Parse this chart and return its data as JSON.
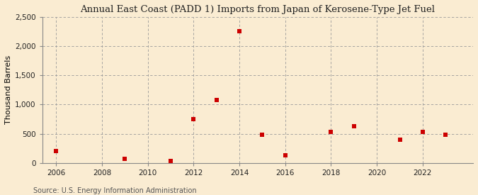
{
  "title": "Annual East Coast (PADD 1) Imports from Japan of Kerosene-Type Jet Fuel",
  "ylabel": "Thousand Barrels",
  "source": "Source: U.S. Energy Information Administration",
  "background_color": "#faecd2",
  "plot_background_color": "#faecd2",
  "marker_color": "#cc0000",
  "marker_size": 5,
  "xlim": [
    2005.4,
    2024.2
  ],
  "ylim": [
    0,
    2500
  ],
  "yticks": [
    0,
    500,
    1000,
    1500,
    2000,
    2500
  ],
  "ytick_labels": [
    "0",
    "500",
    "1,000",
    "1,500",
    "2,000",
    "2,500"
  ],
  "xticks": [
    2006,
    2008,
    2010,
    2012,
    2014,
    2016,
    2018,
    2020,
    2022
  ],
  "data": {
    "years": [
      2006,
      2009,
      2011,
      2012,
      2013,
      2014,
      2015,
      2016,
      2018,
      2019,
      2021,
      2022,
      2023
    ],
    "values": [
      200,
      75,
      30,
      750,
      1075,
      2250,
      480,
      130,
      535,
      625,
      400,
      530,
      480
    ]
  }
}
